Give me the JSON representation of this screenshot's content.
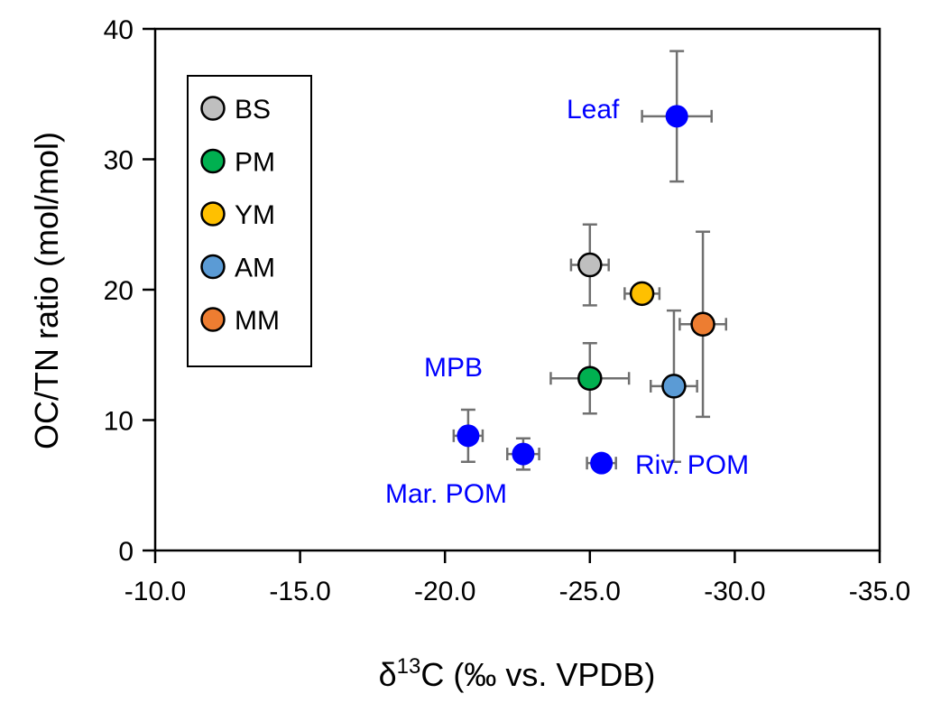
{
  "chart_data": {
    "type": "scatter",
    "title": "",
    "xlabel": "δ13C (‰ vs. VPDB)",
    "xlabel_parts": {
      "prefix": "δ",
      "sup": "13",
      "suffix": "C (‰ vs. VPDB)"
    },
    "ylabel": "OC/TN ratio (mol/mol)",
    "xlim": [
      -10.0,
      -35.0
    ],
    "ylim": [
      0,
      40
    ],
    "x_reversed": true,
    "xticks": [
      -10.0,
      -15.0,
      -20.0,
      -25.0,
      -30.0,
      -35.0
    ],
    "xtick_labels": [
      "-10.0",
      "-15.0",
      "-20.0",
      "-25.0",
      "-30.0",
      "-35.0"
    ],
    "yticks": [
      0,
      10,
      20,
      30,
      40
    ],
    "ytick_labels": [
      "0",
      "10",
      "20",
      "30",
      "40"
    ],
    "grid": false,
    "legend_position": "top-left",
    "legend": [
      {
        "name": "BS",
        "color": "#BFBFBF"
      },
      {
        "name": "PM",
        "color": "#00B050"
      },
      {
        "name": "YM",
        "color": "#FFC000"
      },
      {
        "name": "AM",
        "color": "#5B9BD5"
      },
      {
        "name": "MM",
        "color": "#ED7D31"
      }
    ],
    "series": [
      {
        "name": "BS",
        "color": "#BFBFBF",
        "outlined": true,
        "x": -25.0,
        "y": 21.9,
        "xerr": 0.65,
        "yerr": 3.1
      },
      {
        "name": "PM",
        "color": "#00B050",
        "outlined": true,
        "x": -25.0,
        "y": 13.2,
        "xerr": 1.35,
        "yerr": 2.7
      },
      {
        "name": "YM",
        "color": "#FFC000",
        "outlined": true,
        "x": -26.8,
        "y": 19.7,
        "xerr": 0.6,
        "yerr": 0.3
      },
      {
        "name": "AM",
        "color": "#5B9BD5",
        "outlined": true,
        "x": -27.9,
        "y": 12.6,
        "xerr": 0.8,
        "yerr": 5.8
      },
      {
        "name": "MM",
        "color": "#ED7D31",
        "outlined": true,
        "x": -28.9,
        "y": 17.35,
        "xerr": 0.8,
        "yerr": 7.1
      },
      {
        "name": "Leaf",
        "color": "#0000FF",
        "outlined": false,
        "x": -28.0,
        "y": 33.3,
        "xerr": 1.2,
        "yerr": 5.0
      },
      {
        "name": "MPB",
        "color": "#0000FF",
        "outlined": false,
        "x": -20.8,
        "y": 8.8,
        "xerr": 0.5,
        "yerr": 2.0
      },
      {
        "name": "Mar. POM",
        "color": "#0000FF",
        "outlined": false,
        "x": -22.7,
        "y": 7.4,
        "xerr": 0.55,
        "yerr": 1.2
      },
      {
        "name": "Riv. POM",
        "color": "#0000FF",
        "outlined": false,
        "x": -25.4,
        "y": 6.7,
        "xerr": 0.5,
        "yerr": 0.2
      }
    ],
    "annotations": [
      {
        "text": "Leaf",
        "near": "Leaf",
        "color": "#0000FF"
      },
      {
        "text": "MPB",
        "near": "MPB",
        "color": "#0000FF"
      },
      {
        "text": "Mar. POM",
        "near": "Mar. POM",
        "color": "#0000FF"
      },
      {
        "text": "Riv. POM",
        "near": "Riv. POM",
        "color": "#0000FF"
      }
    ],
    "errorbar_color": "#707070"
  }
}
